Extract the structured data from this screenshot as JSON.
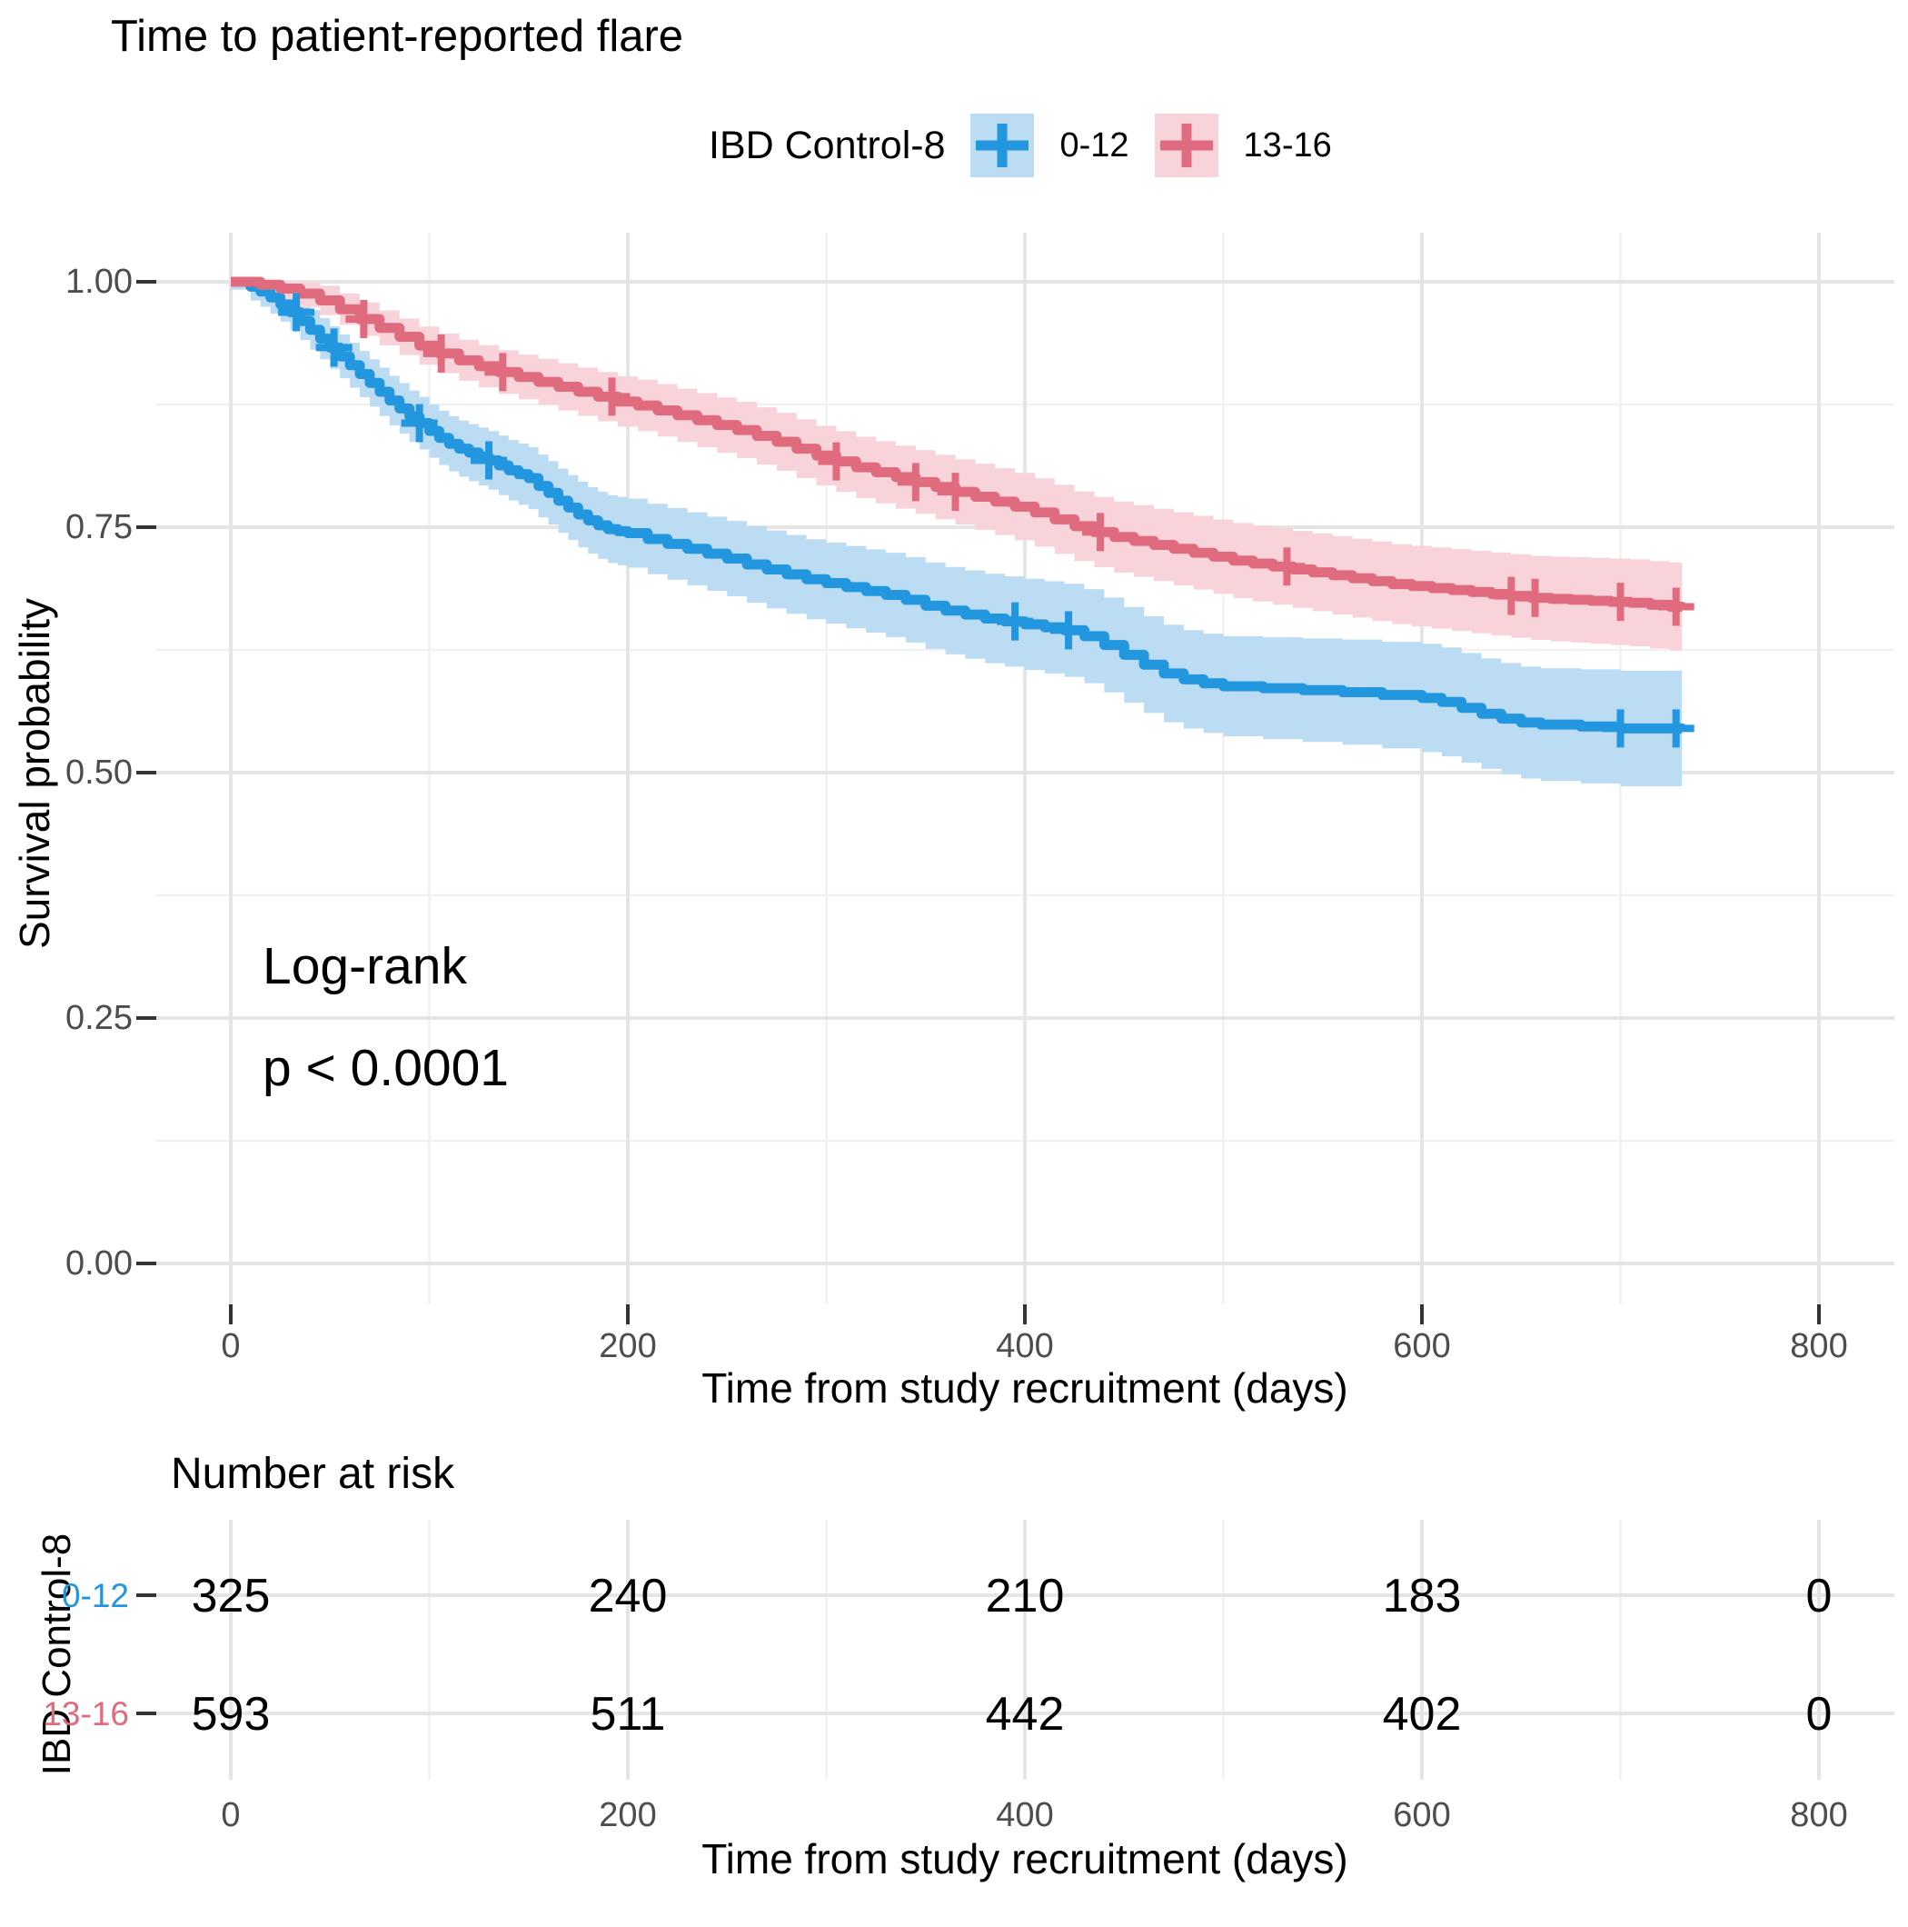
{
  "title": "Time to patient-reported flare",
  "legend": {
    "title": "IBD Control-8",
    "items": [
      {
        "label": "0-12",
        "line_color": "#2296DE",
        "fill_color": "#BBDCF2"
      },
      {
        "label": "13-16",
        "line_color": "#E16B7E",
        "fill_color": "#F8D3DA"
      }
    ]
  },
  "annotation": {
    "line1": "Log-rank",
    "line2": "p < 0.0001"
  },
  "axes": {
    "y_title": "Survival probability",
    "x_title": "Time from study recruitment (days)",
    "y_ticks": [
      "1.00",
      "0.75",
      "0.50",
      "0.25",
      "0.00"
    ],
    "x_ticks": [
      "0",
      "200",
      "400",
      "600",
      "800"
    ]
  },
  "risk_table": {
    "heading": "Number at risk",
    "group_axis_title": "IBD Control-8",
    "x_title": "Time from study recruitment (days)",
    "x_ticks": [
      "0",
      "200",
      "400",
      "600",
      "800"
    ],
    "rows": [
      {
        "label": "0-12",
        "color": "#2296DE",
        "values": [
          "325",
          "240",
          "210",
          "183",
          "0"
        ]
      },
      {
        "label": "13-16",
        "color": "#E16B7E",
        "values": [
          "593",
          "511",
          "442",
          "402",
          "0"
        ]
      }
    ]
  },
  "chart_data": {
    "type": "line",
    "subtype": "kaplan-meier-step",
    "title": "Time to patient-reported flare",
    "xlabel": "Time from study recruitment (days)",
    "ylabel": "Survival probability",
    "xlim": [
      0,
      800
    ],
    "ylim": [
      0.0,
      1.0
    ],
    "x_ticks": [
      0,
      200,
      400,
      600,
      800
    ],
    "x_minor_ticks": [
      100,
      300,
      500,
      700
    ],
    "y_ticks": [
      1.0,
      0.75,
      0.5,
      0.25,
      0.0
    ],
    "y_minor_ticks": [
      0.875,
      0.625,
      0.375,
      0.125
    ],
    "grid": true,
    "legend_position": "top",
    "statistic": {
      "test": "Log-rank",
      "p_value": "p < 0.0001"
    },
    "series": [
      {
        "name": "0-12",
        "n": 325,
        "line_color": "#2296DE",
        "ribbon_color": "#BBDCF2",
        "ci": {
          "base": 0.008,
          "scale": 0.052
        },
        "censor_times": [
          33,
          52,
          95,
          130,
          395,
          422,
          700,
          728
        ],
        "steps": [
          [
            0,
            1.0
          ],
          [
            10,
            0.995
          ],
          [
            15,
            0.99
          ],
          [
            20,
            0.984
          ],
          [
            25,
            0.977
          ],
          [
            30,
            0.969
          ],
          [
            35,
            0.96
          ],
          [
            40,
            0.951
          ],
          [
            45,
            0.942
          ],
          [
            50,
            0.933
          ],
          [
            55,
            0.924
          ],
          [
            60,
            0.915
          ],
          [
            65,
            0.906
          ],
          [
            70,
            0.897
          ],
          [
            75,
            0.888
          ],
          [
            80,
            0.879
          ],
          [
            85,
            0.871
          ],
          [
            90,
            0.863
          ],
          [
            95,
            0.856
          ],
          [
            100,
            0.848
          ],
          [
            105,
            0.841
          ],
          [
            110,
            0.835
          ],
          [
            115,
            0.83
          ],
          [
            120,
            0.826
          ],
          [
            125,
            0.822
          ],
          [
            130,
            0.818
          ],
          [
            135,
            0.813
          ],
          [
            140,
            0.808
          ],
          [
            145,
            0.804
          ],
          [
            150,
            0.8
          ],
          [
            155,
            0.792
          ],
          [
            160,
            0.785
          ],
          [
            165,
            0.777
          ],
          [
            170,
            0.77
          ],
          [
            175,
            0.763
          ],
          [
            180,
            0.757
          ],
          [
            185,
            0.752
          ],
          [
            190,
            0.748
          ],
          [
            195,
            0.746
          ],
          [
            200,
            0.744
          ],
          [
            210,
            0.738
          ],
          [
            220,
            0.733
          ],
          [
            230,
            0.728
          ],
          [
            240,
            0.723
          ],
          [
            250,
            0.718
          ],
          [
            260,
            0.712
          ],
          [
            270,
            0.707
          ],
          [
            280,
            0.702
          ],
          [
            290,
            0.697
          ],
          [
            300,
            0.693
          ],
          [
            310,
            0.689
          ],
          [
            320,
            0.685
          ],
          [
            330,
            0.681
          ],
          [
            340,
            0.676
          ],
          [
            350,
            0.67
          ],
          [
            360,
            0.665
          ],
          [
            370,
            0.661
          ],
          [
            380,
            0.657
          ],
          [
            390,
            0.654
          ],
          [
            400,
            0.651
          ],
          [
            410,
            0.648
          ],
          [
            420,
            0.645
          ],
          [
            430,
            0.639
          ],
          [
            440,
            0.63
          ],
          [
            450,
            0.62
          ],
          [
            460,
            0.61
          ],
          [
            470,
            0.601
          ],
          [
            480,
            0.595
          ],
          [
            490,
            0.591
          ],
          [
            500,
            0.588
          ],
          [
            520,
            0.586
          ],
          [
            540,
            0.584
          ],
          [
            560,
            0.582
          ],
          [
            580,
            0.579
          ],
          [
            600,
            0.576
          ],
          [
            610,
            0.572
          ],
          [
            620,
            0.566
          ],
          [
            630,
            0.56
          ],
          [
            640,
            0.555
          ],
          [
            650,
            0.551
          ],
          [
            660,
            0.549
          ],
          [
            680,
            0.547
          ],
          [
            700,
            0.545
          ],
          [
            731,
            0.543
          ]
        ]
      },
      {
        "name": "13-16",
        "n": 593,
        "line_color": "#E16B7E",
        "ribbon_color": "#F8D3DA",
        "ci": {
          "base": 0.005,
          "scale": 0.04
        },
        "censor_times": [
          67,
          106,
          137,
          192,
          305,
          345,
          365,
          438,
          532,
          645,
          657,
          700,
          728
        ],
        "steps": [
          [
            0,
            1.0
          ],
          [
            15,
            0.997
          ],
          [
            25,
            0.993
          ],
          [
            35,
            0.988
          ],
          [
            45,
            0.981
          ],
          [
            55,
            0.972
          ],
          [
            65,
            0.962
          ],
          [
            75,
            0.953
          ],
          [
            85,
            0.944
          ],
          [
            95,
            0.935
          ],
          [
            105,
            0.927
          ],
          [
            115,
            0.92
          ],
          [
            125,
            0.914
          ],
          [
            135,
            0.908
          ],
          [
            145,
            0.903
          ],
          [
            155,
            0.898
          ],
          [
            165,
            0.893
          ],
          [
            175,
            0.888
          ],
          [
            185,
            0.883
          ],
          [
            195,
            0.878
          ],
          [
            205,
            0.874
          ],
          [
            215,
            0.869
          ],
          [
            225,
            0.864
          ],
          [
            235,
            0.859
          ],
          [
            245,
            0.854
          ],
          [
            255,
            0.849
          ],
          [
            265,
            0.843
          ],
          [
            275,
            0.837
          ],
          [
            285,
            0.83
          ],
          [
            295,
            0.823
          ],
          [
            305,
            0.817
          ],
          [
            315,
            0.811
          ],
          [
            325,
            0.806
          ],
          [
            335,
            0.801
          ],
          [
            345,
            0.796
          ],
          [
            355,
            0.791
          ],
          [
            365,
            0.786
          ],
          [
            375,
            0.781
          ],
          [
            385,
            0.776
          ],
          [
            395,
            0.771
          ],
          [
            405,
            0.765
          ],
          [
            415,
            0.758
          ],
          [
            425,
            0.751
          ],
          [
            435,
            0.745
          ],
          [
            445,
            0.74
          ],
          [
            455,
            0.736
          ],
          [
            465,
            0.732
          ],
          [
            475,
            0.728
          ],
          [
            485,
            0.724
          ],
          [
            495,
            0.72
          ],
          [
            505,
            0.716
          ],
          [
            515,
            0.713
          ],
          [
            525,
            0.71
          ],
          [
            535,
            0.707
          ],
          [
            545,
            0.704
          ],
          [
            555,
            0.701
          ],
          [
            565,
            0.698
          ],
          [
            575,
            0.695
          ],
          [
            585,
            0.692
          ],
          [
            595,
            0.69
          ],
          [
            605,
            0.688
          ],
          [
            615,
            0.686
          ],
          [
            625,
            0.684
          ],
          [
            635,
            0.682
          ],
          [
            645,
            0.68
          ],
          [
            655,
            0.678
          ],
          [
            665,
            0.677
          ],
          [
            675,
            0.676
          ],
          [
            685,
            0.675
          ],
          [
            695,
            0.674
          ],
          [
            705,
            0.673
          ],
          [
            715,
            0.671
          ],
          [
            725,
            0.669
          ],
          [
            731,
            0.668
          ]
        ]
      }
    ],
    "number_at_risk": {
      "times": [
        0,
        200,
        400,
        600,
        800
      ],
      "groups": [
        {
          "name": "0-12",
          "counts": [
            325,
            240,
            210,
            183,
            0
          ]
        },
        {
          "name": "13-16",
          "counts": [
            593,
            511,
            442,
            402,
            0
          ]
        }
      ]
    }
  }
}
